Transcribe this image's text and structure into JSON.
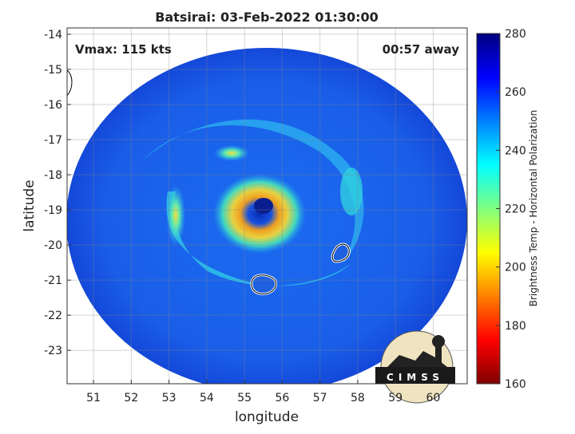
{
  "chart_data": {
    "type": "image",
    "title": "Batsirai: 03-Feb-2022 01:30:00",
    "annotations": [
      "Vmax: 115 kts",
      "00:57 away"
    ],
    "xlabel": "longitude",
    "ylabel": "latitude",
    "xlim": [
      50.3,
      60.9
    ],
    "ylim": [
      -23.95,
      -13.82
    ],
    "xticks": [
      51,
      52,
      53,
      54,
      55,
      56,
      57,
      58,
      59,
      60
    ],
    "yticks": [
      -14,
      -15,
      -16,
      -17,
      -18,
      -19,
      -20,
      -21,
      -22,
      -23
    ],
    "grid": true,
    "colormap": "jet",
    "colorbar": {
      "label": "Brightness Temp - Horizontal Polarization",
      "lim": [
        160,
        280
      ],
      "ticks": [
        160,
        180,
        200,
        220,
        240,
        260,
        280
      ]
    },
    "logo": "CIMSS"
  }
}
